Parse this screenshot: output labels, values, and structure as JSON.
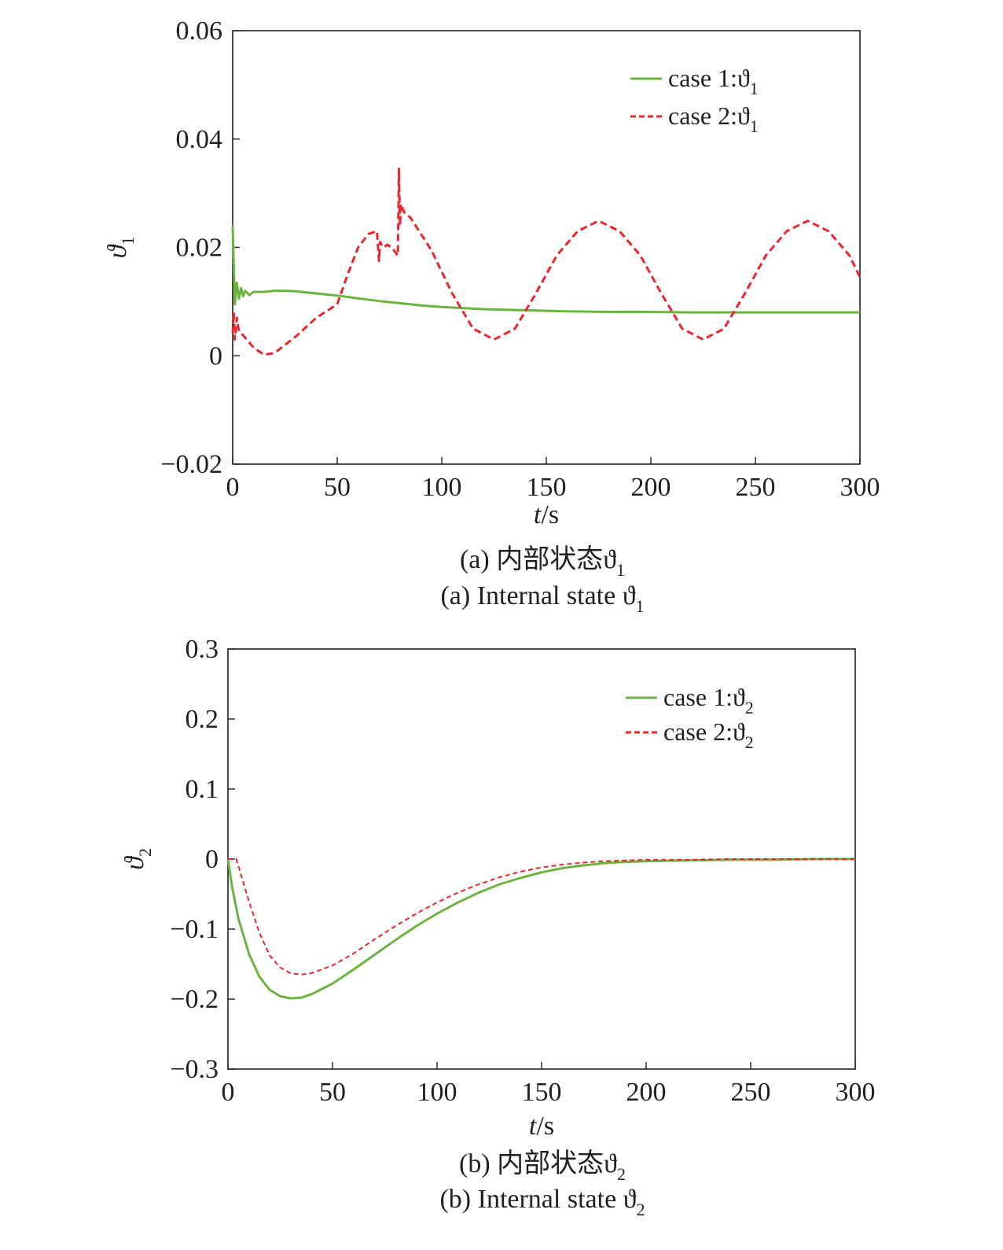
{
  "chart_data": [
    {
      "type": "line",
      "xlabel_var": "t",
      "xlabel_unit": "/s",
      "ylabel_sym": "ϑ",
      "ylabel_sub": "1",
      "xlim": [
        0,
        300
      ],
      "ylim": [
        -0.02,
        0.06
      ],
      "xticks": [
        0,
        50,
        100,
        150,
        200,
        250,
        300
      ],
      "xtick_labels": [
        "0",
        "50",
        "100",
        "150",
        "200",
        "250",
        "300"
      ],
      "yticks": [
        -0.02,
        0,
        0.02,
        0.04,
        0.06
      ],
      "ytick_labels": [
        "−0.02",
        "0",
        "0.02",
        "0.04",
        "0.06"
      ],
      "legend_position": "top-right",
      "caption_cn": "(a) 内部状态ϑ",
      "caption_cn_sub": "1",
      "caption_en": "(a) Internal state ϑ",
      "caption_en_sub": "1",
      "series": [
        {
          "name": "case 1:ϑ",
          "name_sub": "1",
          "color": "#6db33f",
          "dash": "solid",
          "x": [
            0,
            1,
            2,
            3,
            4,
            5,
            6,
            8,
            10,
            15,
            20,
            25,
            30,
            40,
            50,
            60,
            70,
            80,
            90,
            100,
            110,
            120,
            130,
            140,
            150,
            160,
            180,
            200,
            220,
            240,
            260,
            280,
            300
          ],
          "y": [
            0.024,
            0.0095,
            0.0135,
            0.0105,
            0.0125,
            0.011,
            0.012,
            0.0112,
            0.0118,
            0.0118,
            0.012,
            0.012,
            0.0119,
            0.0115,
            0.0111,
            0.0106,
            0.0101,
            0.0097,
            0.0093,
            0.009,
            0.0088,
            0.0086,
            0.0085,
            0.0084,
            0.0083,
            0.0082,
            0.0081,
            0.0081,
            0.008,
            0.008,
            0.008,
            0.008,
            0.008
          ]
        },
        {
          "name": "case 2:ϑ",
          "name_sub": "1",
          "color": "#e8262d",
          "dash": "dashed",
          "x": [
            0,
            0.5,
            1,
            2,
            3,
            5,
            10,
            15,
            20,
            30,
            40,
            48,
            50,
            55,
            60,
            65,
            69,
            70,
            70.5,
            72,
            74,
            76,
            78,
            79,
            79.5,
            80,
            80.5,
            82,
            85,
            95,
            105,
            115,
            125,
            135,
            145,
            155,
            165,
            175,
            185,
            195,
            205,
            215,
            225,
            235,
            245,
            255,
            265,
            275,
            285,
            295,
            300
          ],
          "y": [
            0.004,
            0.008,
            0.003,
            0.007,
            0.0045,
            0.0038,
            0.0015,
            0.0002,
            0.0005,
            0.0035,
            0.007,
            0.009,
            0.0095,
            0.015,
            0.02,
            0.0225,
            0.023,
            0.0175,
            0.021,
            0.02,
            0.0205,
            0.02,
            0.019,
            0.0185,
            0.0345,
            0.024,
            0.028,
            0.0265,
            0.0255,
            0.0195,
            0.0115,
            0.005,
            0.003,
            0.005,
            0.0115,
            0.0185,
            0.023,
            0.0249,
            0.023,
            0.0185,
            0.0115,
            0.005,
            0.003,
            0.005,
            0.0115,
            0.0185,
            0.023,
            0.0249,
            0.023,
            0.0185,
            0.0145
          ]
        }
      ]
    },
    {
      "type": "line",
      "xlabel_var": "t",
      "xlabel_unit": "/s",
      "ylabel_sym": "ϑ",
      "ylabel_sub": "2",
      "xlim": [
        0,
        300
      ],
      "ylim": [
        -0.3,
        0.3
      ],
      "xticks": [
        0,
        50,
        100,
        150,
        200,
        250,
        300
      ],
      "xtick_labels": [
        "0",
        "50",
        "100",
        "150",
        "200",
        "250",
        "300"
      ],
      "yticks": [
        -0.3,
        -0.2,
        -0.1,
        0,
        0.1,
        0.2,
        0.3
      ],
      "ytick_labels": [
        "−0.3",
        "−0.2",
        "−0.1",
        "0",
        "0.1",
        "0.2",
        "0.3"
      ],
      "legend_position": "top-right",
      "caption_cn": "(b) 内部状态ϑ",
      "caption_cn_sub": "2",
      "caption_en": "(b) Internal state ϑ",
      "caption_en_sub": "2",
      "series": [
        {
          "name": "case 1:ϑ",
          "name_sub": "2",
          "color": "#6db33f",
          "dash": "solid",
          "x": [
            0,
            2,
            5,
            10,
            15,
            20,
            25,
            30,
            35,
            40,
            50,
            60,
            70,
            80,
            90,
            100,
            110,
            120,
            130,
            140,
            150,
            160,
            170,
            180,
            190,
            200,
            220,
            240,
            260,
            280,
            300
          ],
          "y": [
            0,
            -0.04,
            -0.085,
            -0.135,
            -0.168,
            -0.187,
            -0.196,
            -0.199,
            -0.198,
            -0.193,
            -0.178,
            -0.158,
            -0.137,
            -0.116,
            -0.096,
            -0.078,
            -0.062,
            -0.048,
            -0.036,
            -0.027,
            -0.019,
            -0.013,
            -0.009,
            -0.006,
            -0.004,
            -0.003,
            -0.002,
            -0.001,
            -0.001,
            0,
            0
          ]
        },
        {
          "name": "case 2:ϑ",
          "name_sub": "2",
          "color": "#e8262d",
          "dash": "dashed",
          "x": [
            0,
            2,
            4,
            6,
            10,
            15,
            20,
            25,
            30,
            35,
            40,
            50,
            60,
            70,
            80,
            90,
            100,
            110,
            120,
            130,
            140,
            150,
            160,
            170,
            180,
            190,
            200,
            220,
            240,
            260,
            280,
            300
          ],
          "y": [
            0,
            0,
            0,
            -0.02,
            -0.06,
            -0.105,
            -0.138,
            -0.155,
            -0.163,
            -0.165,
            -0.163,
            -0.152,
            -0.135,
            -0.115,
            -0.096,
            -0.078,
            -0.062,
            -0.048,
            -0.036,
            -0.026,
            -0.018,
            -0.012,
            -0.008,
            -0.005,
            -0.003,
            -0.002,
            -0.001,
            -0.001,
            0,
            0,
            0,
            0
          ]
        }
      ]
    }
  ]
}
